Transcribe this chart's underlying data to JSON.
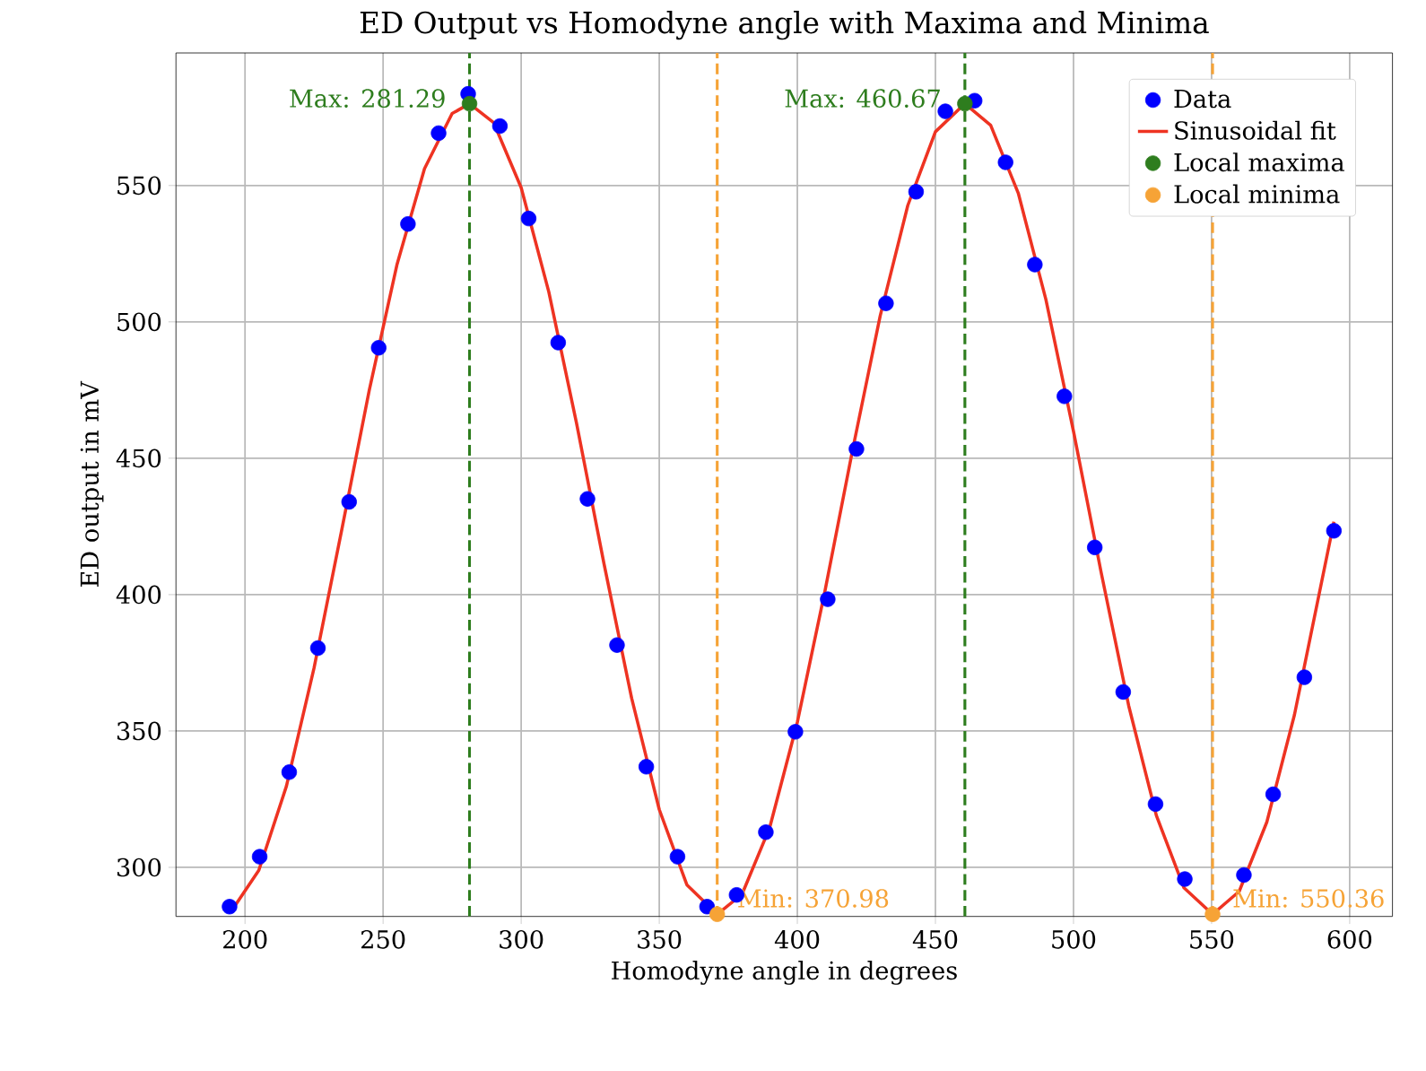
{
  "chart_data": {
    "type": "scatter",
    "title": "ED Output vs Homodyne angle with Maxima and Minima",
    "xlabel": "Homodyne angle in degrees",
    "ylabel": "ED output in mV",
    "xlim": [
      175,
      615.5
    ],
    "ylim": [
      282,
      598.6
    ],
    "xticks": [
      200,
      250,
      300,
      350,
      400,
      450,
      500,
      550,
      600
    ],
    "yticks": [
      300,
      350,
      400,
      450,
      500,
      550
    ],
    "grid": true,
    "legend": "top right",
    "series": [
      {
        "name": "Data",
        "color": "#0000ff",
        "marker": "circle",
        "x": [
          194.4,
          205.3,
          216,
          226.4,
          237.7,
          248.4,
          259,
          270.1,
          280.8,
          292.3,
          302.7,
          313.4,
          324,
          334.7,
          345.3,
          356.6,
          367.3,
          378,
          388.6,
          399.3,
          411,
          421.4,
          432.1,
          443,
          453.6,
          464.2,
          475.4,
          486,
          496.7,
          507.7,
          518,
          529.7,
          540.3,
          561.7,
          572.3,
          583.6,
          594.3
        ],
        "values": [
          285.6,
          303.9,
          334.9,
          380.4,
          434.0,
          490.5,
          535.9,
          569.2,
          583.6,
          571.8,
          537.9,
          492.4,
          435.1,
          381.5,
          336.9,
          303.9,
          285.6,
          289.9,
          312.9,
          349.7,
          398.3,
          453.4,
          506.8,
          547.7,
          577.2,
          581.1,
          558.5,
          521,
          472.7,
          417.3,
          364.3,
          323.2,
          295.7,
          297.2,
          326.8,
          369.7,
          423.4
        ]
      },
      {
        "name": "Sinusoidal fit",
        "type": "line",
        "color": "#ee3322",
        "marker": "none",
        "line_style": "solid",
        "x": [
          195,
          205,
          215,
          225,
          235,
          245,
          255,
          265,
          275,
          281.29,
          290,
          300,
          310,
          320,
          330,
          340,
          350,
          360,
          370.98,
          380,
          390,
          400,
          410,
          420,
          430,
          440,
          450,
          460.67,
          470,
          480,
          490,
          500,
          510,
          520,
          530,
          540,
          550.36,
          560,
          570,
          580,
          594.3
        ],
        "values": [
          283.9,
          298.9,
          329.8,
          373.1,
          423.6,
          475.0,
          520.9,
          556.2,
          576.4,
          580.0,
          573.1,
          549.2,
          511.0,
          463.1,
          411.3,
          362.0,
          321.2,
          293.6,
          282.8,
          290.2,
          314.6,
          353.2,
          401.3,
          453.0,
          502.2,
          542.7,
          569.7,
          580.0,
          572.1,
          547.2,
          508.2,
          459.9,
          408.2,
          359.2,
          319.0,
          292.5,
          282.8,
          291.2,
          316.6,
          355.9,
          426.7
        ]
      },
      {
        "name": "Local maxima",
        "color": "#2e7d1e",
        "marker": "circle",
        "x": [
          281.29,
          460.67
        ],
        "values": [
          580.0,
          580.0
        ]
      },
      {
        "name": "Local minima",
        "color": "#f6a336",
        "marker": "circle",
        "x": [
          370.98,
          550.36
        ],
        "values": [
          282.8,
          282.8
        ]
      }
    ],
    "ref_lines": [
      {
        "axis": "x",
        "value": 281.29,
        "color": "#2e7d1e",
        "line_style": "dashed"
      },
      {
        "axis": "x",
        "value": 460.67,
        "color": "#2e7d1e",
        "line_style": "dashed"
      },
      {
        "axis": "x",
        "value": 370.98,
        "color": "#f6a336",
        "line_style": "dashed"
      },
      {
        "axis": "x",
        "value": 550.36,
        "color": "#f6a336",
        "line_style": "dashed"
      }
    ],
    "annotations": [
      {
        "text": "Max: 281.29",
        "x": 281.29,
        "y": 580.0
      },
      {
        "text": "Max: 460.67",
        "x": 460.67,
        "y": 580.0
      },
      {
        "text": "Min: 370.98",
        "x": 370.98,
        "y": 282.8
      },
      {
        "text": "Min: 550.36",
        "x": 550.36,
        "y": 282.8
      }
    ]
  }
}
